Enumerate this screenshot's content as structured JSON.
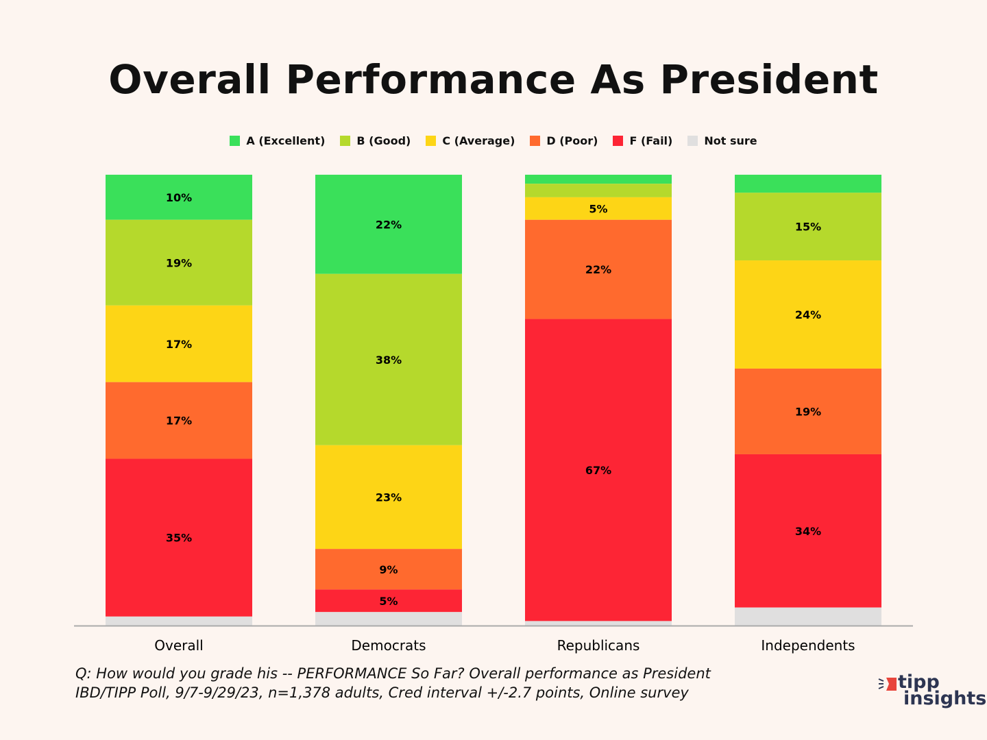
{
  "chart_data": {
    "type": "bar",
    "stacked": true,
    "title": "Overall Performance As President",
    "categories": [
      "Overall",
      "Democrats",
      "Republicans",
      "Independents"
    ],
    "series": [
      {
        "name": "A (Excellent)",
        "color": "#3ae05a",
        "values": [
          10,
          22,
          2,
          4
        ]
      },
      {
        "name": "B (Good)",
        "color": "#b5d92c",
        "values": [
          19,
          38,
          3,
          15
        ]
      },
      {
        "name": "C (Average)",
        "color": "#fdd516",
        "values": [
          17,
          23,
          5,
          24
        ]
      },
      {
        "name": "D (Poor)",
        "color": "#ff6a2e",
        "values": [
          17,
          9,
          22,
          19
        ]
      },
      {
        "name": "F (Fail)",
        "color": "#fd2535",
        "values": [
          35,
          5,
          67,
          34
        ]
      },
      {
        "name": "Not sure",
        "color": "#e0dfdf",
        "values": [
          2,
          3,
          1,
          4
        ]
      }
    ],
    "value_suffix": "%",
    "ylim": [
      0,
      100
    ],
    "legend": "top",
    "grid": false
  },
  "footer": {
    "line1": "Q:  How would you grade his -- PERFORMANCE So Far? Overall performance as President",
    "line2": "IBD/TIPP Poll, 9/7-9/29/23, n=1,378 adults, Cred interval +/-2.7 points, Online survey"
  },
  "logo": {
    "line1": "tipp",
    "line2": "insights"
  }
}
